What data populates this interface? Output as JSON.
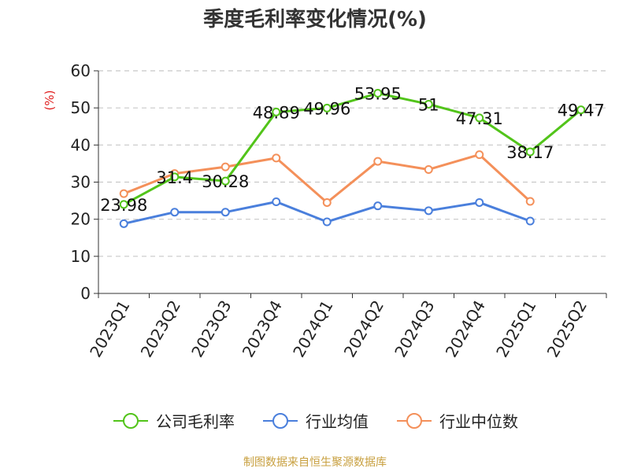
{
  "chart_data": {
    "type": "line",
    "title": "季度毛利率变化情况(%)",
    "ylabel": "(%)",
    "xlabel": "",
    "categories": [
      "2023Q1",
      "2023Q2",
      "2023Q3",
      "2023Q4",
      "2024Q1",
      "2024Q2",
      "2024Q3",
      "2024Q4",
      "2025Q1",
      "2025Q2"
    ],
    "ylim": [
      0,
      60
    ],
    "yticks": [
      0,
      10,
      20,
      30,
      40,
      50,
      60
    ],
    "grid": true,
    "legend_position": "bottom",
    "series": [
      {
        "name": "公司毛利率",
        "color": "#52c41a",
        "values": [
          23.98,
          31.4,
          30.28,
          48.89,
          49.96,
          53.95,
          51,
          47.31,
          38.17,
          49.47
        ],
        "labels": [
          "23.98",
          "31.4",
          "30.28",
          "48.89",
          "49.96",
          "53.95",
          "51",
          "47.31",
          "38.17",
          "49.47"
        ]
      },
      {
        "name": "行业均值",
        "color": "#4a7fdc",
        "values": [
          18.8,
          21.9,
          21.9,
          24.7,
          19.3,
          23.6,
          22.3,
          24.5,
          19.5,
          null
        ]
      },
      {
        "name": "行业中位数",
        "color": "#f4905a",
        "values": [
          26.9,
          32.3,
          34.1,
          36.5,
          24.5,
          35.6,
          33.4,
          37.4,
          24.8,
          null
        ]
      }
    ]
  },
  "source": "制图数据来自恒生聚源数据库"
}
